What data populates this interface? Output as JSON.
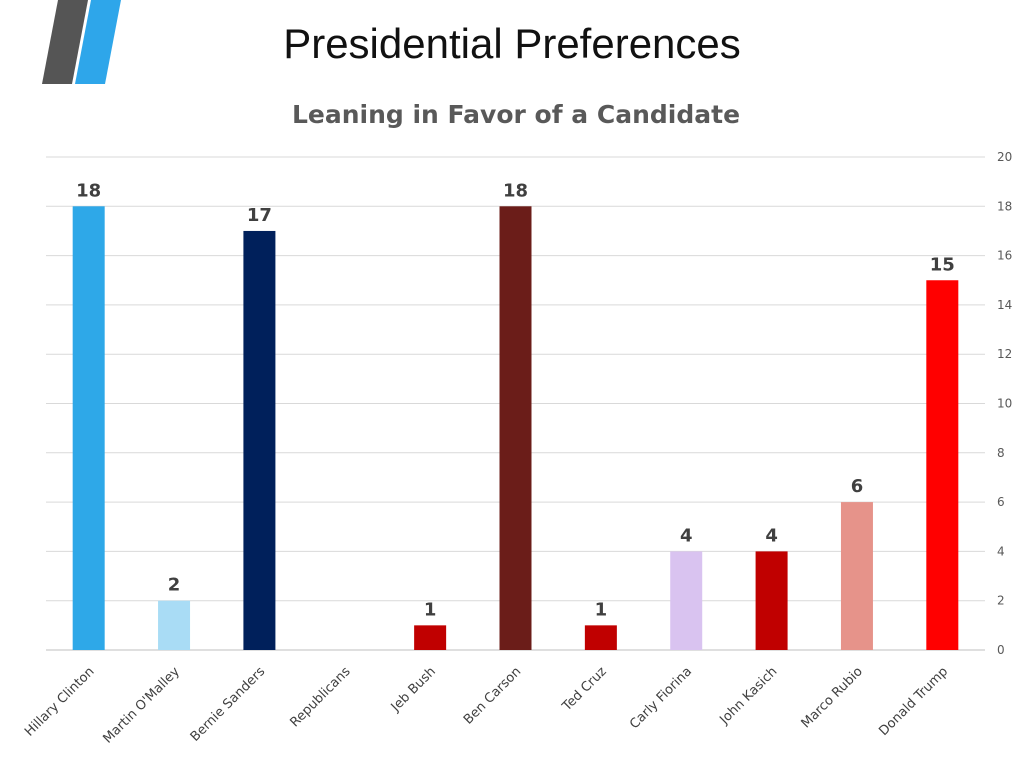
{
  "slide": {
    "title": "Presidential Preferences",
    "logo": {
      "name": "stripes-logo-icon",
      "colors": [
        "#555555",
        "#2EA6EA"
      ]
    }
  },
  "chart_data": {
    "type": "bar",
    "title": "Leaning in Favor of a Candidate",
    "xlabel": "",
    "ylabel": "",
    "ylim": [
      0,
      20
    ],
    "y_ticks": [
      0,
      2,
      4,
      6,
      8,
      10,
      12,
      14,
      16,
      18,
      20
    ],
    "y_axis_position": "right",
    "grid": true,
    "legend": "none",
    "categories": [
      "Hillary Clinton",
      "Martin O'Malley",
      "Bernie Sanders",
      "Republicans",
      "Jeb Bush",
      "Ben Carson",
      "Ted Cruz",
      "Carly Fiorina",
      "John Kasich",
      "Marco Rubio",
      "Donald Trump"
    ],
    "values": [
      18,
      2,
      17,
      null,
      1,
      18,
      1,
      4,
      4,
      6,
      15
    ],
    "bar_colors": [
      "#2EA8E8",
      "#A9DCF5",
      "#00205B",
      "#FFFFFF",
      "#C00000",
      "#6B1D19",
      "#C00000",
      "#D9C3F0",
      "#C00000",
      "#E6938A",
      "#FF0000"
    ]
  }
}
